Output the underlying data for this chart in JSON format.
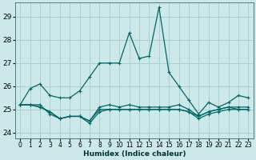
{
  "xlabel": "Humidex (Indice chaleur)",
  "background_color": "#cce8e8",
  "grid_color": "#aad0d0",
  "line_color": "#006868",
  "xlim": [
    -0.5,
    23.5
  ],
  "ylim": [
    23.75,
    29.6
  ],
  "yticks": [
    24,
    25,
    26,
    27,
    28,
    29
  ],
  "xticks": [
    0,
    1,
    2,
    3,
    4,
    5,
    6,
    7,
    8,
    9,
    10,
    11,
    12,
    13,
    14,
    15,
    16,
    17,
    18,
    19,
    20,
    21,
    22,
    23
  ],
  "series": [
    [
      25.2,
      25.9,
      26.1,
      25.6,
      25.5,
      25.5,
      25.8,
      26.4,
      27.0,
      27.0,
      27.0,
      28.3,
      27.2,
      27.3,
      29.4,
      26.6,
      26.0,
      25.4,
      24.8,
      25.3,
      25.1,
      25.3,
      25.6,
      25.5
    ],
    [
      25.2,
      25.2,
      25.2,
      24.8,
      24.6,
      24.7,
      24.7,
      24.5,
      25.1,
      25.2,
      25.1,
      25.2,
      25.1,
      25.1,
      25.1,
      25.1,
      25.2,
      25.0,
      24.7,
      24.9,
      25.0,
      25.1,
      25.1,
      25.1
    ],
    [
      25.2,
      25.2,
      25.1,
      24.9,
      24.6,
      24.7,
      24.7,
      24.4,
      24.9,
      25.0,
      25.0,
      25.0,
      25.0,
      25.0,
      25.0,
      25.0,
      25.0,
      24.9,
      24.6,
      24.8,
      24.9,
      25.0,
      25.0,
      25.0
    ],
    [
      25.2,
      25.2,
      25.1,
      24.9,
      24.6,
      24.7,
      24.7,
      24.5,
      25.0,
      25.0,
      25.0,
      25.0,
      25.0,
      25.0,
      25.0,
      25.0,
      25.0,
      24.9,
      24.7,
      24.9,
      25.0,
      25.1,
      25.0,
      25.0
    ]
  ]
}
